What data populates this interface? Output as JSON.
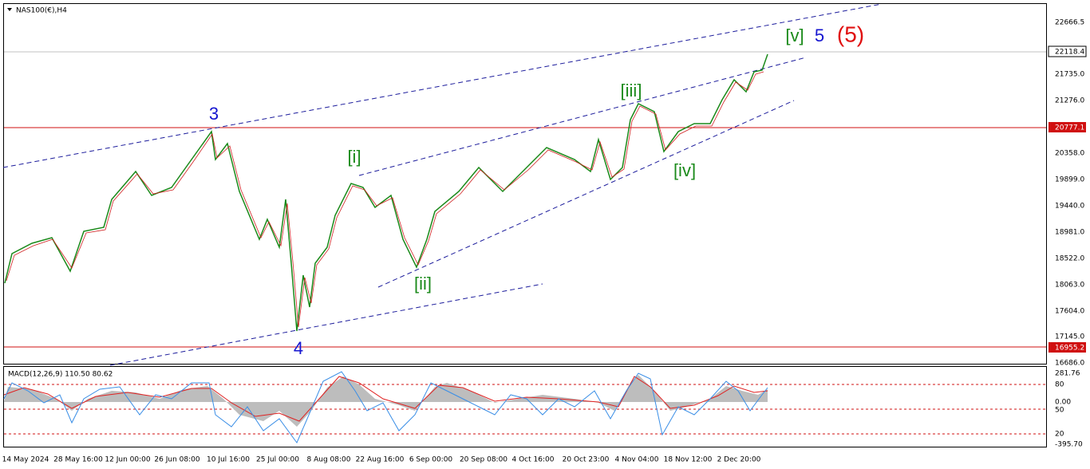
{
  "header": {
    "title": "NAS100(€),H4"
  },
  "price_axis": {
    "labels": [
      "22666.5",
      "22118.4",
      "21735.0",
      "21276.0",
      "20777.1",
      "20358.0",
      "19899.0",
      "19440.0",
      "18981.0",
      "18522.0",
      "18063.0",
      "17604.0",
      "17145.0",
      "16955.2",
      "16686.0"
    ]
  },
  "macd": {
    "label": "MACD(12,26,9) 110.50 80.62",
    "axis_labels": [
      "281.76",
      "80",
      "0.00",
      "50",
      "20",
      "-395.70"
    ]
  },
  "time_axis": {
    "labels": [
      "14 May 2024",
      "28 May 16:00",
      "12 Jun 00:00",
      "26 Jun 08:00",
      "10 Jul 16:00",
      "25 Jul 00:00",
      "8 Aug 08:00",
      "22 Aug 16:00",
      "6 Sep 00:00",
      "20 Sep 08:00",
      "4 Oct 16:00",
      "20 Oct 23:00",
      "4 Nov 04:00",
      "18 Nov 12:00",
      "2 Dec 20:00"
    ]
  },
  "waves": [
    "3",
    "4",
    "[i]",
    "[ii]",
    "[iii]",
    "[iv]",
    "[v]",
    "5",
    "(5)"
  ]
}
